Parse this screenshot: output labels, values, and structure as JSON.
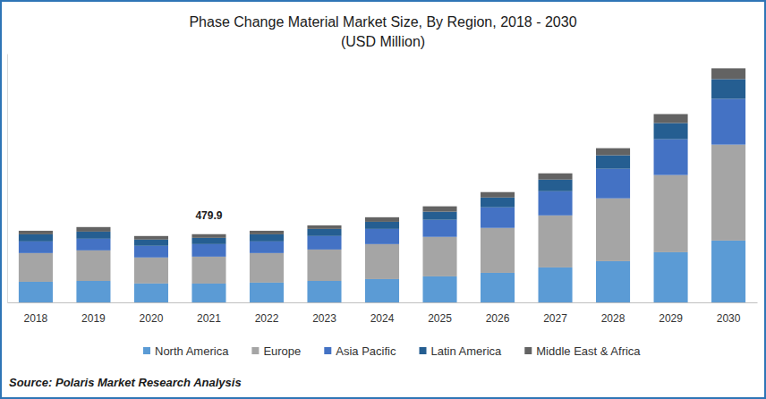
{
  "chart_data": {
    "type": "bar",
    "stacked": true,
    "title": "Phase Change Material Market Size, By Region, 2018 - 2030",
    "subtitle": "(USD Million)",
    "source": "Source: Polaris Market Research Analysis",
    "categories": [
      "2018",
      "2019",
      "2020",
      "2021",
      "2022",
      "2023",
      "2024",
      "2025",
      "2026",
      "2027",
      "2028",
      "2029",
      "2030"
    ],
    "series": [
      {
        "name": "North America",
        "color": "#5b9bd5",
        "values": [
          145,
          151,
          133,
          132.5,
          139,
          151,
          164,
          183,
          208,
          246,
          290,
          353,
          435
        ]
      },
      {
        "name": "Europe",
        "color": "#a5a5a5",
        "values": [
          202,
          215,
          183,
          189.3,
          208,
          221,
          246,
          278,
          316,
          366,
          442,
          543,
          675
        ]
      },
      {
        "name": "Asia Pacific",
        "color": "#4472c4",
        "values": [
          82,
          82,
          82,
          88.3,
          82,
          95,
          107,
          120,
          145,
          170,
          208,
          252,
          322
        ]
      },
      {
        "name": "Latin America",
        "color": "#255e91",
        "values": [
          50,
          50,
          44,
          44.2,
          50,
          50,
          50,
          57,
          69,
          82,
          95,
          114,
          139
        ]
      },
      {
        "name": "Middle East & Africa",
        "color": "#636363",
        "values": [
          25,
          32,
          25,
          25.6,
          25,
          25,
          32,
          38,
          38,
          44,
          50,
          63,
          76
        ]
      }
    ],
    "annotations": [
      {
        "category": "2021",
        "value": 479.9
      }
    ],
    "ylim": [
      0,
      1750
    ],
    "tick_labels": "x",
    "grid": false,
    "legend": "bottom"
  }
}
